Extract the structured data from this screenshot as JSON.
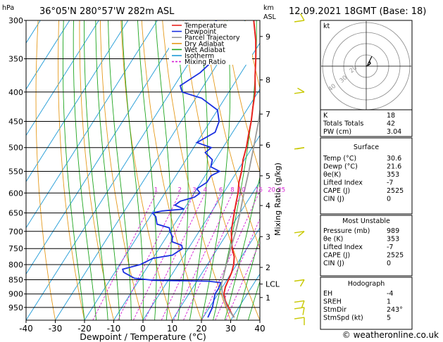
{
  "header": {
    "hpa_label": "hPa",
    "location": "36°05'N  280°57'W  282m  ASL",
    "km_label": "km",
    "asl_label": "ASL",
    "datetime": "12.09.2021  18GMT  (Base: 18)"
  },
  "xlabel": "Dewpoint / Temperature (°C)",
  "mixing_ratio_label": "Mixing Ratio (g/kg)",
  "mixing_ratio_values": [
    "1",
    "2",
    "3",
    "4",
    "6",
    "8",
    "10",
    "15",
    "20",
    "25"
  ],
  "legend": [
    {
      "label": "Temperature",
      "color": "#e8231f",
      "dash": "none"
    },
    {
      "label": "Dewpoint",
      "color": "#1a2fe0",
      "dash": "none"
    },
    {
      "label": "Parcel Trajectory",
      "color": "#999999",
      "dash": "none"
    },
    {
      "label": "Dry Adiabat",
      "color": "#e59a1c",
      "dash": "none"
    },
    {
      "label": "Wet Adiabat",
      "color": "#1ea51e",
      "dash": "none"
    },
    {
      "label": "Isotherm",
      "color": "#1e9ad6",
      "dash": "none"
    },
    {
      "label": "Mixing Ratio",
      "color": "#d41fd4",
      "dash": "3,2"
    }
  ],
  "hodograph": {
    "unit_label": "kt",
    "ring_labels": [
      "40",
      "30",
      "20"
    ]
  },
  "indices": [
    {
      "label": "K",
      "value": "18"
    },
    {
      "label": "Totals Totals",
      "value": "42"
    },
    {
      "label": "PW (cm)",
      "value": "3.04"
    }
  ],
  "surface": {
    "title": "Surface",
    "rows": [
      {
        "label": "Temp (°C)",
        "value": "30.6"
      },
      {
        "label": "Dewp (°C)",
        "value": "21.6"
      },
      {
        "label": "θe(K)",
        "value": "353"
      },
      {
        "label": "Lifted Index",
        "value": "-7"
      },
      {
        "label": "CAPE (J)",
        "value": "2525"
      },
      {
        "label": "CIN (J)",
        "value": "0"
      }
    ]
  },
  "most_unstable": {
    "title": "Most Unstable",
    "rows": [
      {
        "label": "Pressure (mb)",
        "value": "989"
      },
      {
        "label": "θe (K)",
        "value": "353"
      },
      {
        "label": "Lifted Index",
        "value": "-7"
      },
      {
        "label": "CAPE (J)",
        "value": "2525"
      },
      {
        "label": "CIN (J)",
        "value": "0"
      }
    ]
  },
  "hodograph_table": {
    "title": "Hodograph",
    "rows": [
      {
        "label": "EH",
        "value": "-4"
      },
      {
        "label": "SREH",
        "value": "1"
      },
      {
        "label": "StmDir",
        "value": "243°"
      },
      {
        "label": "StmSpd (kt)",
        "value": "5"
      }
    ]
  },
  "copyright": "© weatheronline.co.uk",
  "chart_data": {
    "type": "line",
    "title": "36°05'N  280°57'W  282m  ASL",
    "xlabel": "Dewpoint / Temperature (°C)",
    "ylabel": "hPa",
    "x_ticks": [
      -40,
      -30,
      -20,
      -10,
      0,
      10,
      20,
      30,
      40
    ],
    "xlim": [
      -40,
      40
    ],
    "y_ticks": [
      300,
      350,
      400,
      450,
      500,
      550,
      600,
      650,
      700,
      750,
      800,
      850,
      900,
      950
    ],
    "ylim": [
      1000,
      300
    ],
    "km_ticks": [
      {
        "label": "9",
        "p": 320
      },
      {
        "label": "8",
        "p": 381
      },
      {
        "label": "7",
        "p": 437
      },
      {
        "label": "6",
        "p": 495
      },
      {
        "label": "5",
        "p": 560
      },
      {
        "label": "4",
        "p": 631
      },
      {
        "label": "3",
        "p": 715
      },
      {
        "label": "2",
        "p": 809
      },
      {
        "label": "LCL",
        "p": 865
      },
      {
        "label": "1",
        "p": 913
      }
    ],
    "skew_deg_per_log": 118,
    "series": [
      {
        "name": "Temperature",
        "color": "#e8231f",
        "width": 2,
        "points": [
          [
            989,
            30.6
          ],
          [
            975,
            29
          ],
          [
            950,
            26.5
          ],
          [
            925,
            24
          ],
          [
            900,
            22
          ],
          [
            875,
            21
          ],
          [
            850,
            20.5
          ],
          [
            825,
            20
          ],
          [
            800,
            19
          ],
          [
            775,
            17.5
          ],
          [
            750,
            15
          ],
          [
            725,
            13
          ],
          [
            700,
            11
          ],
          [
            675,
            9.5
          ],
          [
            650,
            8
          ],
          [
            625,
            6.5
          ],
          [
            600,
            5
          ],
          [
            575,
            3
          ],
          [
            550,
            1.5
          ],
          [
            525,
            -0.5
          ],
          [
            500,
            -2
          ],
          [
            475,
            -4
          ],
          [
            450,
            -6
          ],
          [
            425,
            -8.5
          ],
          [
            400,
            -11
          ],
          [
            375,
            -14.5
          ],
          [
            350,
            -18
          ],
          [
            325,
            -22
          ],
          [
            300,
            -27
          ]
        ]
      },
      {
        "name": "Dewpoint",
        "color": "#1a2fe0",
        "width": 1.8,
        "points": [
          [
            989,
            21.6
          ],
          [
            950,
            21
          ],
          [
            925,
            20
          ],
          [
            900,
            19
          ],
          [
            880,
            19
          ],
          [
            860,
            18.5
          ],
          [
            855,
            14
          ],
          [
            852,
            -5
          ],
          [
            845,
            -12
          ],
          [
            825,
            -17
          ],
          [
            815,
            -18
          ],
          [
            800,
            -13
          ],
          [
            780,
            -10
          ],
          [
            770,
            -4
          ],
          [
            760,
            -3
          ],
          [
            750,
            -2
          ],
          [
            740,
            -3
          ],
          [
            730,
            -7
          ],
          [
            715,
            -8
          ],
          [
            700,
            -10
          ],
          [
            690,
            -11
          ],
          [
            680,
            -16
          ],
          [
            660,
            -18
          ],
          [
            650,
            -20
          ],
          [
            645,
            -17
          ],
          [
            640,
            -10
          ],
          [
            630,
            -14
          ],
          [
            620,
            -13
          ],
          [
            610,
            -9
          ],
          [
            600,
            -8
          ],
          [
            590,
            -10
          ],
          [
            575,
            -8
          ],
          [
            560,
            -8
          ],
          [
            550,
            -6
          ],
          [
            540,
            -10
          ],
          [
            525,
            -11
          ],
          [
            510,
            -15
          ],
          [
            500,
            -14
          ],
          [
            490,
            -20
          ],
          [
            470,
            -16
          ],
          [
            450,
            -17
          ],
          [
            430,
            -20
          ],
          [
            410,
            -28
          ],
          [
            400,
            -36
          ],
          [
            390,
            -38
          ],
          [
            370,
            -34
          ],
          [
            350,
            -32
          ],
          [
            330,
            -32
          ],
          [
            320,
            -35
          ],
          [
            310,
            -36
          ],
          [
            300,
            -40
          ]
        ]
      },
      {
        "name": "Parcel Trajectory",
        "color": "#999999",
        "width": 1.8,
        "points": [
          [
            989,
            30.6
          ],
          [
            950,
            26
          ],
          [
            900,
            21.5
          ],
          [
            865,
            19
          ],
          [
            850,
            18.5
          ],
          [
            800,
            16.5
          ],
          [
            750,
            14.5
          ],
          [
            700,
            12.5
          ],
          [
            650,
            10
          ],
          [
            600,
            7
          ],
          [
            550,
            4
          ],
          [
            500,
            0.5
          ],
          [
            450,
            -3.5
          ],
          [
            400,
            -8.5
          ],
          [
            350,
            -14.5
          ],
          [
            300,
            -22
          ]
        ]
      }
    ],
    "wind_barbs": [
      {
        "p": 300,
        "dir": 330,
        "spd": 10
      },
      {
        "p": 400,
        "dir": 300,
        "spd": 10
      },
      {
        "p": 500,
        "dir": 260,
        "spd": 10
      },
      {
        "p": 700,
        "dir": 230,
        "spd": 5
      },
      {
        "p": 850,
        "dir": 210,
        "spd": 5
      },
      {
        "p": 925,
        "dir": 200,
        "spd": 5
      },
      {
        "p": 950,
        "dir": 190,
        "spd": 5
      },
      {
        "p": 989,
        "dir": 180,
        "spd": 5
      }
    ],
    "hodograph_points": [
      [
        0,
        0
      ],
      [
        2,
        1
      ],
      [
        4,
        2
      ],
      [
        6,
        4
      ],
      [
        5,
        6
      ],
      [
        3,
        5
      ]
    ]
  }
}
